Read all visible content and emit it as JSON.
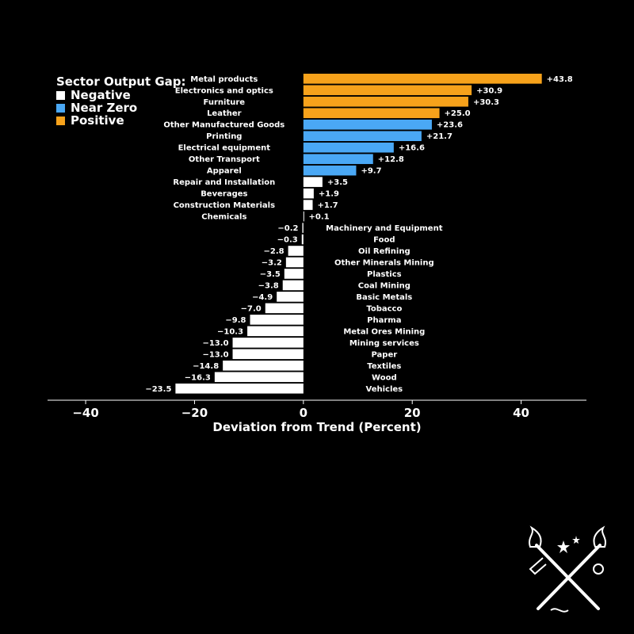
{
  "chart_data": {
    "type": "bar",
    "orientation": "horizontal",
    "xlabel": "Deviation from Trend (Percent)",
    "xlim": [
      -47,
      52
    ],
    "xticks": [
      -40,
      -20,
      0,
      20,
      40
    ],
    "xtick_labels": [
      "−40",
      "−20",
      "0",
      "20",
      "40"
    ],
    "categories": [
      "Metal products",
      "Electronics and optics",
      "Furniture",
      "Leather",
      "Other Manufactured Goods",
      "Printing",
      "Electrical equipment",
      "Other Transport",
      "Apparel",
      "Repair and Installation",
      "Beverages",
      "Construction Materials",
      "Chemicals",
      "Machinery and Equipment",
      "Food",
      "Oil Refining",
      "Other Minerals Mining",
      "Plastics",
      "Coal Mining",
      "Basic Metals",
      "Tobacco",
      "Pharma",
      "Metal Ores Mining",
      "Mining services",
      "Paper",
      "Textiles",
      "Wood",
      "Vehicles"
    ],
    "values": [
      43.8,
      30.9,
      30.3,
      25.0,
      23.6,
      21.7,
      16.6,
      12.8,
      9.7,
      3.5,
      1.9,
      1.7,
      0.1,
      -0.2,
      -0.3,
      -2.8,
      -3.2,
      -3.5,
      -3.8,
      -4.9,
      -7.0,
      -9.8,
      -10.3,
      -13.0,
      -13.0,
      -14.8,
      -16.3,
      -23.5
    ],
    "value_labels": [
      "+43.8",
      "+30.9",
      "+30.3",
      "+25.0",
      "+23.6",
      "+21.7",
      "+16.6",
      "+12.8",
      "+9.7",
      "+3.5",
      "+1.9",
      "+1.7",
      "+0.1",
      "−0.2",
      "−0.3",
      "−2.8",
      "−3.2",
      "−3.5",
      "−3.8",
      "−4.9",
      "−7.0",
      "−9.8",
      "−10.3",
      "−13.0",
      "−13.0",
      "−14.8",
      "−16.3",
      "−23.5"
    ],
    "groups": [
      "Positive",
      "Positive",
      "Positive",
      "Positive",
      "Near Zero",
      "Near Zero",
      "Near Zero",
      "Near Zero",
      "Near Zero",
      "Negative",
      "Negative",
      "Negative",
      "Negative",
      "Negative",
      "Negative",
      "Negative",
      "Negative",
      "Negative",
      "Negative",
      "Negative",
      "Negative",
      "Negative",
      "Negative",
      "Negative",
      "Negative",
      "Negative",
      "Negative",
      "Negative"
    ],
    "group_colors": {
      "Negative": "#ffffff",
      "Near Zero": "#4aa8f5",
      "Positive": "#f7a21b"
    },
    "grid": false
  },
  "legend": {
    "title": "Sector Output Gap:",
    "items": [
      {
        "label": "Negative",
        "color": "#ffffff"
      },
      {
        "label": "Near Zero",
        "color": "#4aa8f5"
      },
      {
        "label": "Positive",
        "color": "#f7a21b"
      }
    ]
  },
  "logo": {
    "name": "crossed-torches-emblem"
  }
}
